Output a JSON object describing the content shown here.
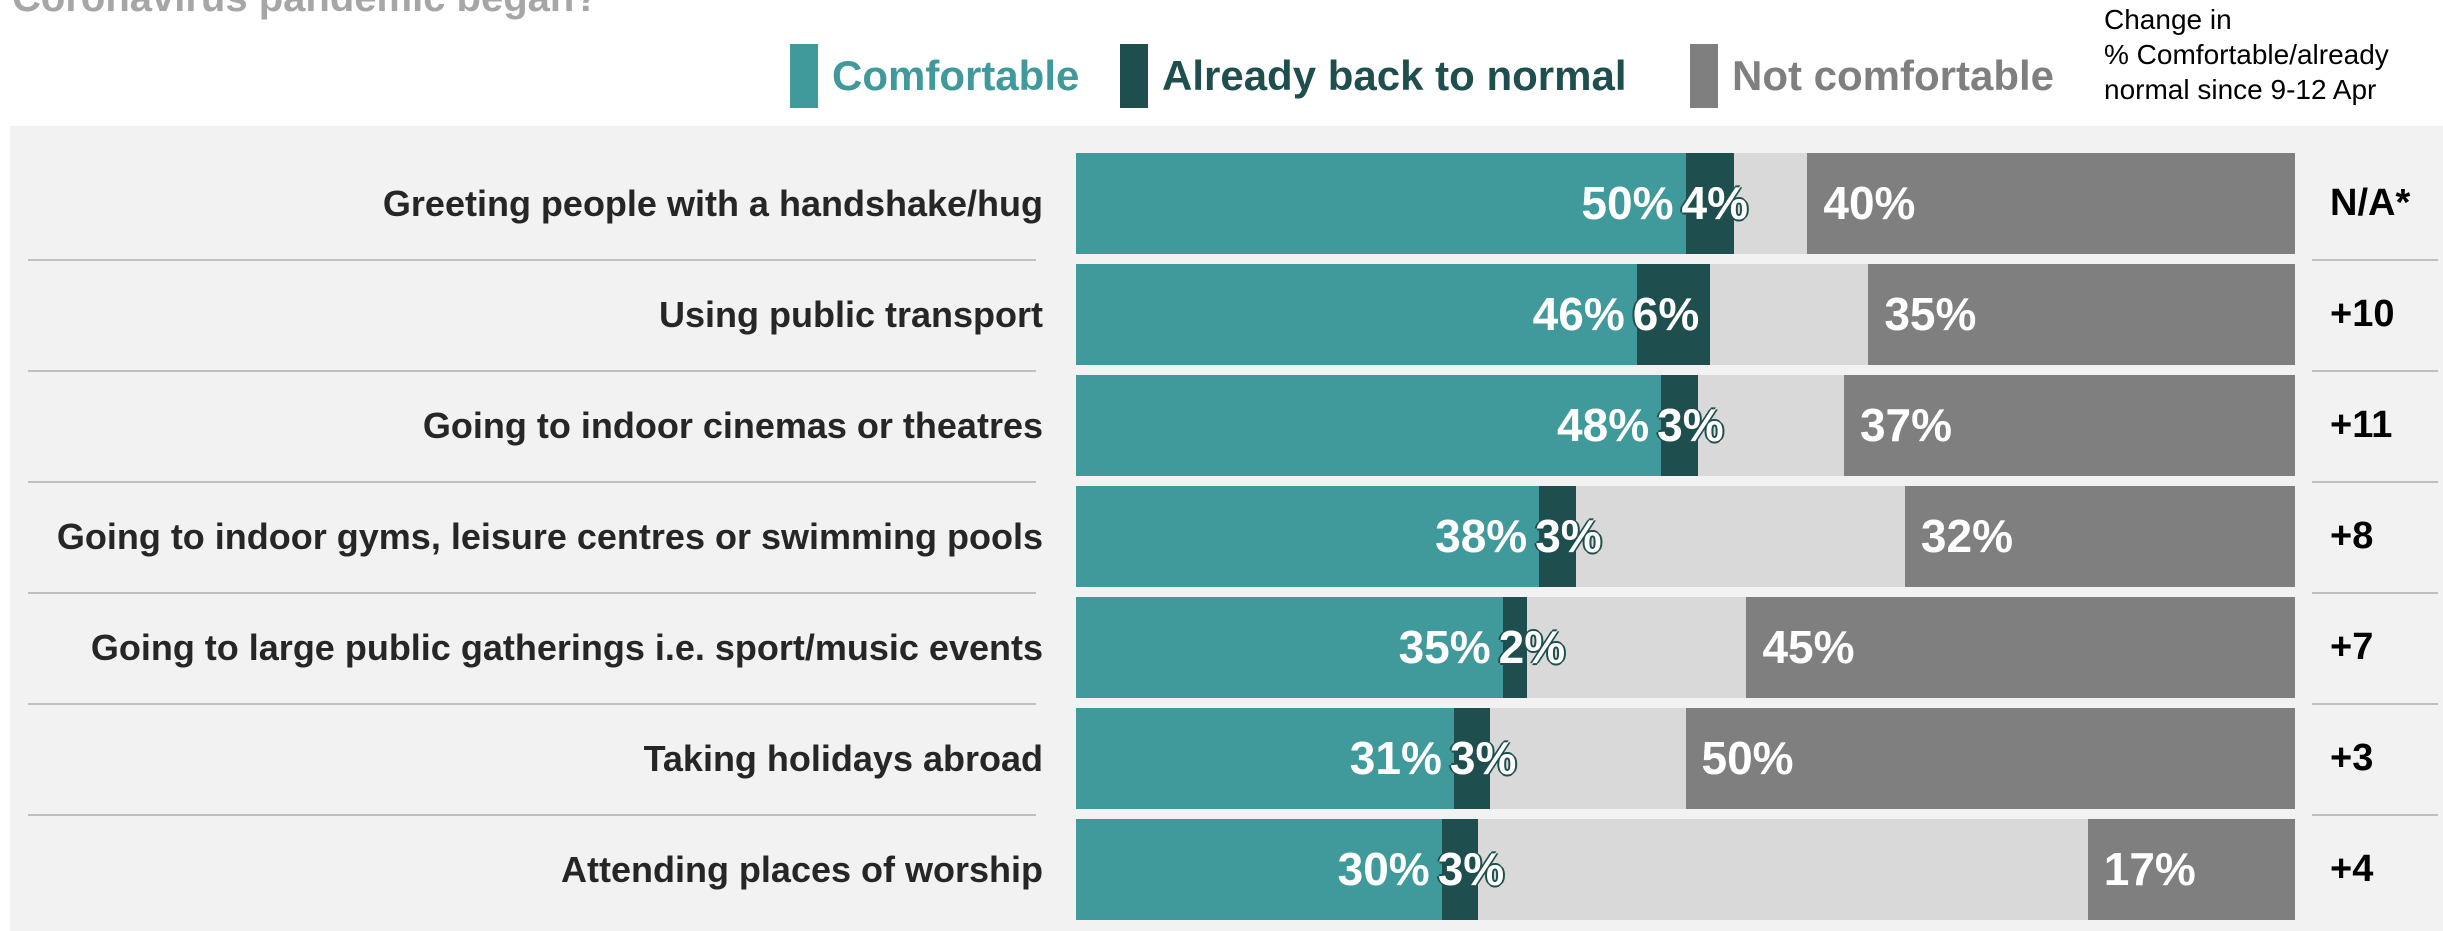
{
  "title_fragment": "Coronavirus pandemic began?",
  "legend": [
    {
      "label": "Comfortable",
      "color": "#40999a"
    },
    {
      "label": "Already back to normal",
      "color": "#1f4e4e"
    },
    {
      "label": "Not comfortable",
      "color": "#7f7f7f"
    }
  ],
  "change_header": [
    "Change in",
    "% Comfortable/already",
    "normal since 9-12 Apr"
  ],
  "colors": {
    "remainder": "#d9d9d9",
    "panel": "#f2f2f2"
  },
  "chart_data": {
    "type": "bar",
    "orientation": "horizontal",
    "stacked": true,
    "xlim": [
      0,
      100
    ],
    "categories": [
      "Greeting people with a handshake/hug",
      "Using public transport",
      "Going to indoor cinemas or theatres",
      "Going to indoor gyms, leisure centres or swimming pools",
      "Going to large public gatherings i.e. sport/music events",
      "Taking holidays abroad",
      "Attending places of worship"
    ],
    "series": [
      {
        "name": "Comfortable",
        "values": [
          50,
          46,
          48,
          38,
          35,
          31,
          30
        ]
      },
      {
        "name": "Already back to normal",
        "values": [
          4,
          6,
          3,
          3,
          2,
          3,
          3
        ]
      },
      {
        "name": "Not comfortable",
        "values": [
          40,
          35,
          37,
          32,
          45,
          50,
          17
        ]
      }
    ],
    "change_since_apr": [
      "N/A*",
      "+10",
      "+11",
      "+8",
      "+7",
      "+3",
      "+4"
    ]
  }
}
